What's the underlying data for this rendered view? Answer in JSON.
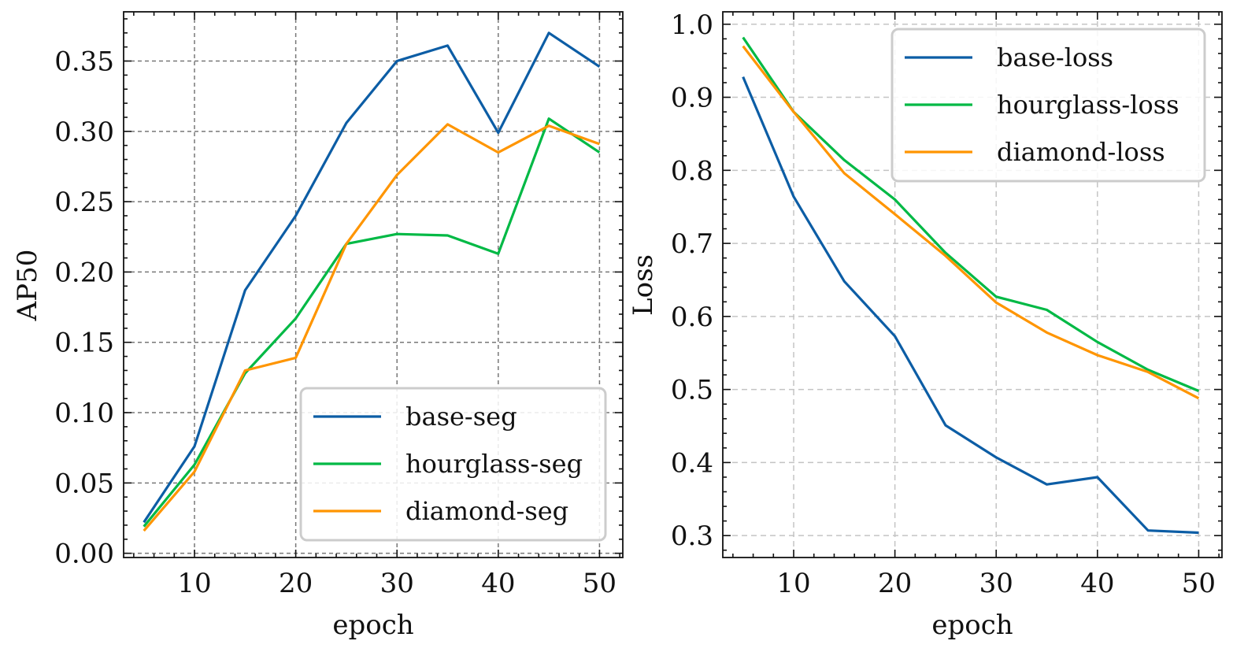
{
  "chart_data": [
    {
      "type": "line",
      "title": "",
      "xlabel": "epoch",
      "ylabel": "AP50",
      "x": [
        5,
        10,
        15,
        20,
        25,
        30,
        35,
        40,
        45,
        50
      ],
      "xlim": [
        3,
        52.3
      ],
      "ylim": [
        -0.003,
        0.385
      ],
      "xticks": [
        10,
        20,
        30,
        40,
        50
      ],
      "xtick_labels": [
        "10",
        "20",
        "30",
        "40",
        "50"
      ],
      "yticks": [
        0.0,
        0.05,
        0.1,
        0.15,
        0.2,
        0.25,
        0.3,
        0.35
      ],
      "ytick_labels": [
        "0.00",
        "0.05",
        "0.10",
        "0.15",
        "0.20",
        "0.25",
        "0.30",
        "0.35"
      ],
      "grid": true,
      "grid_style": "dashed-dark",
      "legend_position": "lower-right",
      "series": [
        {
          "name": "base-seg",
          "color": "#0C5DA5",
          "values": [
            0.022,
            0.076,
            0.187,
            0.24,
            0.306,
            0.35,
            0.361,
            0.299,
            0.37,
            0.346
          ]
        },
        {
          "name": "hourglass-seg",
          "color": "#00B945",
          "values": [
            0.019,
            0.063,
            0.128,
            0.167,
            0.22,
            0.227,
            0.226,
            0.213,
            0.309,
            0.285
          ]
        },
        {
          "name": "diamond-seg",
          "color": "#FF9500",
          "values": [
            0.016,
            0.058,
            0.13,
            0.139,
            0.22,
            0.269,
            0.305,
            0.285,
            0.304,
            0.291
          ]
        }
      ]
    },
    {
      "type": "line",
      "title": "",
      "xlabel": "epoch",
      "ylabel": "Loss",
      "x": [
        5,
        10,
        15,
        20,
        25,
        30,
        35,
        40,
        45,
        50
      ],
      "xlim": [
        3,
        52.3
      ],
      "ylim": [
        0.27,
        1.017
      ],
      "xticks": [
        10,
        20,
        30,
        40,
        50
      ],
      "xtick_labels": [
        "10",
        "20",
        "30",
        "40",
        "50"
      ],
      "yticks": [
        0.3,
        0.4,
        0.5,
        0.6,
        0.7,
        0.8,
        0.9,
        1.0
      ],
      "ytick_labels": [
        "0.3",
        "0.4",
        "0.5",
        "0.6",
        "0.7",
        "0.8",
        "0.9",
        "1.0"
      ],
      "grid": true,
      "grid_style": "dashed-light",
      "legend_position": "upper-right",
      "series": [
        {
          "name": "base-loss",
          "color": "#0C5DA5",
          "values": [
            0.928,
            0.764,
            0.648,
            0.573,
            0.451,
            0.407,
            0.37,
            0.38,
            0.307,
            0.304
          ]
        },
        {
          "name": "hourglass-loss",
          "color": "#00B945",
          "values": [
            0.982,
            0.88,
            0.814,
            0.76,
            0.687,
            0.627,
            0.609,
            0.565,
            0.527,
            0.498
          ]
        },
        {
          "name": "diamond-loss",
          "color": "#FF9500",
          "values": [
            0.97,
            0.88,
            0.796,
            0.74,
            0.683,
            0.619,
            0.578,
            0.547,
            0.524,
            0.488
          ]
        }
      ]
    }
  ]
}
